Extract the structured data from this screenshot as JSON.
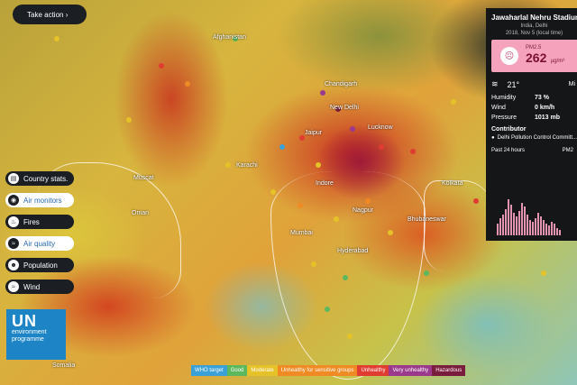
{
  "header": {
    "take_action": "Take action ›"
  },
  "layers": [
    {
      "label": "Country stats.",
      "icon": "stats-icon",
      "active": false
    },
    {
      "label": "Air monitors",
      "icon": "monitor-icon",
      "active": true
    },
    {
      "label": "Fires",
      "icon": "fire-icon",
      "active": false
    },
    {
      "label": "Air quality",
      "icon": "wind-icon",
      "active": true
    },
    {
      "label": "Population",
      "icon": "people-icon",
      "active": false
    },
    {
      "label": "Wind",
      "icon": "wind-icon",
      "active": false
    }
  ],
  "logo": {
    "un": "UN",
    "line1": "environment",
    "line2": "programme"
  },
  "map_labels": [
    {
      "text": "Afghanistan"
    },
    {
      "text": "Karachi"
    },
    {
      "text": "New Delhi"
    },
    {
      "text": "Chandigarh"
    },
    {
      "text": "Oman"
    },
    {
      "text": "Nagpur"
    },
    {
      "text": "Bhubaneswar"
    },
    {
      "text": "Mumbai"
    },
    {
      "text": "Hyderabad"
    },
    {
      "text": "Somalia"
    },
    {
      "text": "Lucknow"
    },
    {
      "text": "Jaipur"
    },
    {
      "text": "Kolkata"
    },
    {
      "text": "Indore"
    },
    {
      "text": "Muscat"
    }
  ],
  "legend": [
    {
      "label": "WHO target",
      "color": "#3aa0d8"
    },
    {
      "label": "Good",
      "color": "#5cb85c"
    },
    {
      "label": "Moderate",
      "color": "#e6c229"
    },
    {
      "label": "Unhealthy for sensitive groups",
      "color": "#f08a24"
    },
    {
      "label": "Unhealthy",
      "color": "#e03c31"
    },
    {
      "label": "Very unhealthy",
      "color": "#9b3a8c"
    },
    {
      "label": "Hazardous",
      "color": "#7a1c3c"
    }
  ],
  "station": {
    "name": "Jawaharlal Nehru Stadium",
    "location": "India, Delhi",
    "time": "2018, Nov 5 (local time)",
    "pollutant": "PM2.5",
    "value": "262",
    "unit": "µg/m³",
    "temperature": "21°",
    "wind_dir": "Mi",
    "humidity_label": "Humidity",
    "humidity": "73 %",
    "wind_label": "Wind",
    "wind": "0 km/h",
    "pressure_label": "Pressure",
    "pressure": "1013 mb",
    "contributor_heading": "Contributor",
    "contributor": "Delhi Pollution Control Committ...",
    "past_label": "Past 24 hours",
    "past_unit": "PM2",
    "history": [
      30,
      45,
      55,
      70,
      95,
      80,
      60,
      50,
      65,
      85,
      75,
      55,
      40,
      35,
      45,
      60,
      50,
      40,
      30,
      25,
      35,
      30,
      20,
      15
    ]
  }
}
